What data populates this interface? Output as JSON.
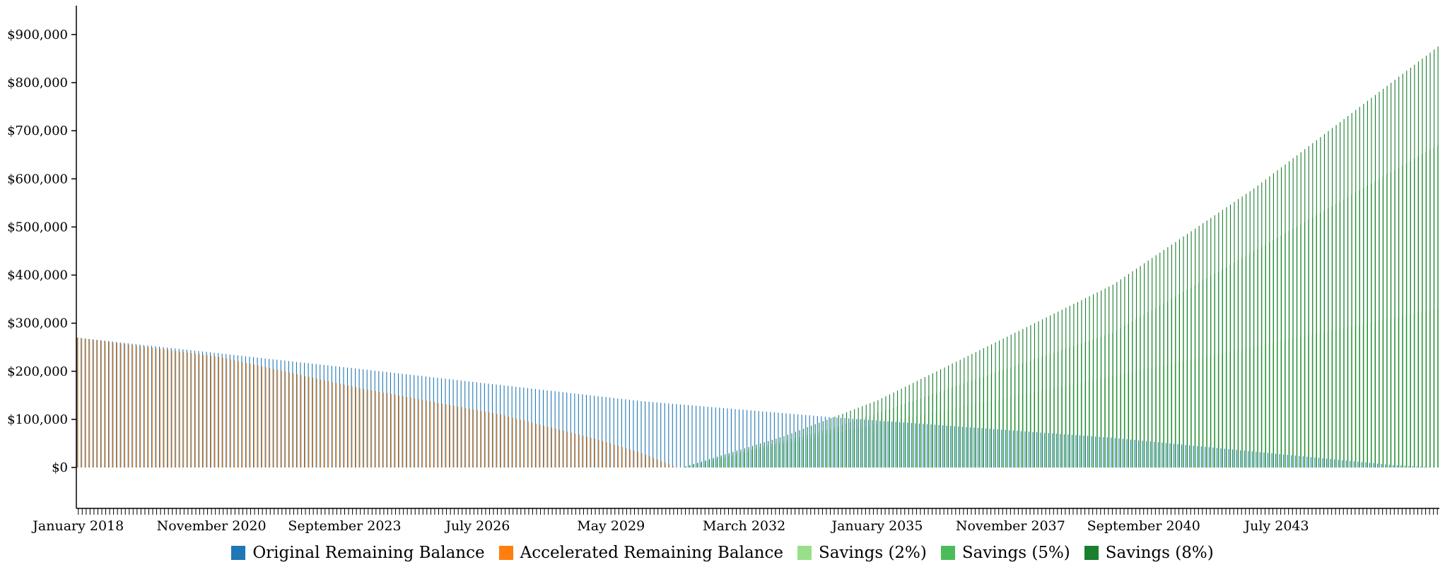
{
  "chart_data": {
    "type": "bar",
    "x_start": "January 2018",
    "x_end": "December 2046",
    "x_tick_labels": [
      "January 2018",
      "November 2020",
      "September 2023",
      "July 2026",
      "May 2029",
      "March 2032",
      "January 2035",
      "November 2037",
      "September 2040",
      "July 2043"
    ],
    "y_tick_labels": [
      "$0",
      "$100,000",
      "$200,000",
      "$300,000",
      "$400,000",
      "$500,000",
      "$600,000",
      "$700,000",
      "$800,000",
      "$900,000"
    ],
    "ylim": [
      -85000,
      960000
    ],
    "grid": false,
    "legend_position": "bottom",
    "series": [
      {
        "name": "Original Remaining Balance",
        "color": "#1f77b4",
        "points": [
          [
            "January 2018",
            270000
          ],
          [
            "January 2024",
            205000
          ],
          [
            "January 2030",
            138000
          ],
          [
            "January 2034",
            105000
          ],
          [
            "January 2040",
            62000
          ],
          [
            "January 2046",
            5000
          ],
          [
            "December 2046",
            0
          ]
        ]
      },
      {
        "name": "Accelerated Remaining Balance",
        "color": "#ff7f0e",
        "points": [
          [
            "January 2018",
            270000
          ],
          [
            "January 2021",
            230000
          ],
          [
            "January 2024",
            165000
          ],
          [
            "January 2027",
            110000
          ],
          [
            "January 2029",
            60000
          ],
          [
            "January 2030",
            30000
          ],
          [
            "October 2030",
            0
          ]
        ]
      },
      {
        "name": "Savings (2%)",
        "color": "#98df8a",
        "points": [
          [
            "November 2030",
            0
          ],
          [
            "January 2034",
            70000
          ],
          [
            "January 2040",
            190000
          ],
          [
            "December 2046",
            330000
          ]
        ]
      },
      {
        "name": "Savings (5%)",
        "color": "#4cbc5a",
        "points": [
          [
            "November 2030",
            0
          ],
          [
            "January 2034",
            80000
          ],
          [
            "January 2040",
            280000
          ],
          [
            "December 2046",
            670000
          ]
        ]
      },
      {
        "name": "Savings (8%)",
        "color": "#1a7f2e",
        "points": [
          [
            "November 2030",
            0
          ],
          [
            "January 2033",
            65000
          ],
          [
            "January 2035",
            140000
          ],
          [
            "January 2040",
            380000
          ],
          [
            "January 2043",
            580000
          ],
          [
            "December 2046",
            875000
          ]
        ]
      }
    ]
  }
}
